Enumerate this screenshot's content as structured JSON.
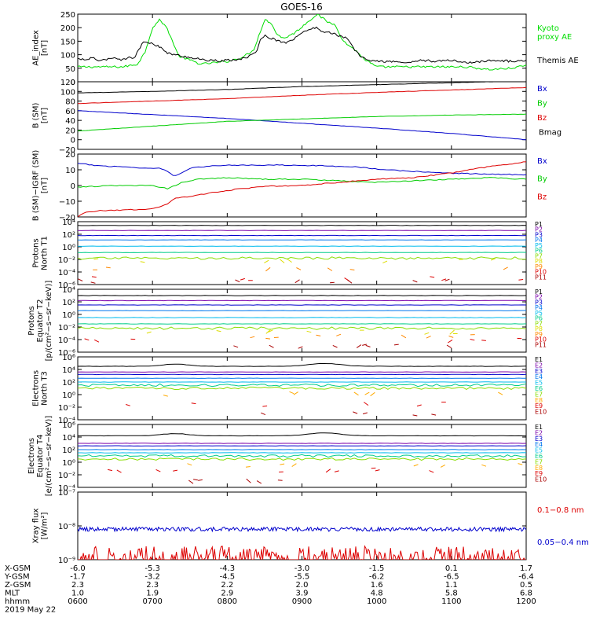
{
  "title": "GOES-16",
  "chart_data": [
    {
      "panel": "ae",
      "type": "line",
      "ylabel_lines": [
        "AE_index",
        "[nT]"
      ],
      "ylim": [
        0,
        250
      ],
      "yticks": [
        "250",
        "200",
        "150",
        "100",
        "50",
        "0"
      ],
      "legend": [
        {
          "lines": [
            "Kyoto",
            "proxy AE"
          ],
          "color": "#00dd00"
        },
        {
          "lines": [
            "Themis AE"
          ],
          "color": "#000000"
        }
      ],
      "series": [
        {
          "name": "Kyoto proxy AE",
          "color": "#00dd00",
          "x": [
            6.0,
            6.3,
            6.6,
            6.8,
            6.9,
            7.0,
            7.1,
            7.2,
            7.35,
            7.5,
            7.65,
            7.8,
            8.0,
            8.2,
            8.35,
            8.5,
            8.6,
            8.65,
            8.75,
            8.9,
            9.05,
            9.2,
            9.35,
            9.45,
            9.55,
            9.7,
            9.85,
            10.0,
            10.2,
            10.5,
            10.8,
            11.0,
            11.2,
            11.5,
            11.8,
            12.0
          ],
          "values": [
            55,
            55,
            55,
            65,
            110,
            200,
            230,
            195,
            95,
            80,
            65,
            70,
            75,
            90,
            115,
            230,
            215,
            180,
            160,
            180,
            215,
            250,
            220,
            210,
            150,
            120,
            80,
            55,
            55,
            55,
            55,
            55,
            55,
            45,
            50,
            60
          ]
        },
        {
          "name": "Themis AE",
          "color": "#000000",
          "x": [
            6.0,
            6.1,
            6.2,
            6.3,
            6.4,
            6.5,
            6.6,
            6.7,
            6.75,
            6.8,
            6.85,
            6.9,
            7.0,
            7.1,
            7.2,
            7.3,
            7.4,
            7.5,
            7.6,
            7.7,
            7.8,
            7.9,
            8.0,
            8.1,
            8.2,
            8.3,
            8.35,
            8.4,
            8.45,
            8.5,
            8.6,
            8.7,
            8.8,
            8.9,
            9.0,
            9.1,
            9.2,
            9.25,
            9.3,
            9.4,
            9.5,
            9.6,
            9.7,
            9.8,
            9.9,
            10.0,
            10.2,
            10.4,
            10.6,
            10.8,
            11.0,
            11.2,
            11.4,
            11.6,
            11.8,
            12.0
          ],
          "values": [
            85,
            80,
            90,
            75,
            85,
            90,
            80,
            95,
            85,
            110,
            135,
            150,
            140,
            130,
            105,
            100,
            95,
            90,
            85,
            80,
            80,
            75,
            80,
            80,
            85,
            95,
            100,
            120,
            160,
            170,
            160,
            150,
            145,
            160,
            180,
            195,
            200,
            190,
            185,
            180,
            170,
            160,
            120,
            90,
            80,
            75,
            75,
            70,
            80,
            75,
            80,
            70,
            75,
            80,
            75,
            80
          ]
        }
      ]
    },
    {
      "panel": "b",
      "type": "line",
      "ylabel_lines": [
        "B (SM)",
        "[nT]"
      ],
      "ylim": [
        -20,
        120
      ],
      "yticks": [
        "120",
        "100",
        "80",
        "60",
        "40",
        "20",
        "0",
        "−20"
      ],
      "legend": [
        {
          "lines": [
            "Bx"
          ],
          "color": "#0000cc"
        },
        {
          "lines": [
            "By"
          ],
          "color": "#00cc00"
        },
        {
          "lines": [
            "Bz"
          ],
          "color": "#dd0000"
        },
        {
          "lines": [
            "Bmag"
          ],
          "color": "#000000"
        }
      ],
      "series": [
        {
          "name": "Bx",
          "color": "#0000cc",
          "x": [
            6.0,
            7.0,
            8.0,
            9.0,
            10.0,
            11.0,
            12.0
          ],
          "values": [
            60,
            52,
            44,
            34,
            24,
            13,
            0
          ]
        },
        {
          "name": "By",
          "color": "#00cc00",
          "x": [
            6.0,
            7.0,
            8.0,
            9.0,
            10.0,
            11.0,
            12.0
          ],
          "values": [
            18,
            28,
            38,
            43,
            48,
            51,
            53
          ]
        },
        {
          "name": "Bz",
          "color": "#dd0000",
          "x": [
            6.0,
            7.0,
            8.0,
            9.0,
            10.0,
            11.0,
            12.0
          ],
          "values": [
            75,
            80,
            85,
            92,
            98,
            103,
            108
          ]
        },
        {
          "name": "Bmag",
          "color": "#000000",
          "x": [
            6.0,
            7.0,
            8.0,
            9.0,
            10.0,
            11.0,
            12.0
          ],
          "values": [
            97,
            100,
            104,
            110,
            114,
            118,
            122
          ]
        }
      ]
    },
    {
      "panel": "bdiff",
      "type": "line",
      "ylabel_lines": [
        "B (SM)−IGRF (SM)",
        "[nT]"
      ],
      "ylim": [
        -20,
        20
      ],
      "yticks": [
        "20",
        "10",
        "0",
        "−10",
        "−20"
      ],
      "legend": [
        {
          "lines": [
            "Bx"
          ],
          "color": "#0000cc"
        },
        {
          "lines": [
            "By"
          ],
          "color": "#00cc00"
        },
        {
          "lines": [
            "Bz"
          ],
          "color": "#dd0000"
        }
      ],
      "series": [
        {
          "name": "Bx",
          "color": "#0000cc",
          "x": [
            6.0,
            6.3,
            6.6,
            6.9,
            7.1,
            7.2,
            7.3,
            7.5,
            7.8,
            8.1,
            8.5,
            8.9,
            9.3,
            9.7,
            10.1,
            10.5,
            10.9,
            11.3,
            11.7,
            12.0
          ],
          "values": [
            14,
            12.5,
            12,
            11,
            11,
            9,
            6,
            11,
            12.5,
            13,
            13,
            13,
            12.5,
            12,
            10,
            9,
            8,
            7.5,
            7,
            7
          ]
        },
        {
          "name": "By",
          "color": "#00cc00",
          "x": [
            6.0,
            6.5,
            7.0,
            7.2,
            7.4,
            7.6,
            8.0,
            8.5,
            9.0,
            9.5,
            10.0,
            10.5,
            11.0,
            11.5,
            12.0
          ],
          "values": [
            -1,
            0,
            0,
            -2,
            2,
            4,
            5,
            4,
            4,
            3,
            2,
            3,
            4,
            5,
            4
          ]
        },
        {
          "name": "Bz",
          "color": "#dd0000",
          "x": [
            6.0,
            6.1,
            6.3,
            6.6,
            7.0,
            7.2,
            7.3,
            7.5,
            7.8,
            8.1,
            8.5,
            9.0,
            9.5,
            10.0,
            10.5,
            11.0,
            11.5,
            12.0
          ],
          "values": [
            -20,
            -17,
            -16,
            -15.5,
            -15,
            -12,
            -8,
            -7,
            -4.5,
            -2.5,
            -0.5,
            0,
            2,
            4,
            5,
            8,
            12,
            15
          ]
        }
      ]
    },
    {
      "panel": "pn",
      "type": "line",
      "log": true,
      "ylabel_lines": [
        "Protons",
        "North T1"
      ],
      "ylim": [
        -6,
        4
      ],
      "yticks": [
        "10⁴",
        "10²",
        "10⁰",
        "10⁻²",
        "10⁻⁴",
        "10⁻⁶"
      ],
      "channels": [
        {
          "label": "P1",
          "color": "#000000",
          "level": 3.4
        },
        {
          "label": "P2",
          "color": "#7b00aa",
          "level": 2.6
        },
        {
          "label": "P3",
          "color": "#0000cc",
          "level": 1.8
        },
        {
          "label": "P4",
          "color": "#0077ee",
          "level": 1.1
        },
        {
          "label": "P5",
          "color": "#00bbee",
          "level": 0.1
        },
        {
          "label": "P6",
          "color": "#00cc88",
          "level": -0.9
        },
        {
          "label": "P7",
          "color": "#88dd00",
          "level": -1.8
        },
        {
          "label": "P8",
          "color": "#dddd00",
          "level": -2.2
        },
        {
          "label": "P9",
          "color": "#ff8800",
          "level": -3.5
        },
        {
          "label": "P10",
          "color": "#dd0000",
          "level": -5.0
        },
        {
          "label": "P11",
          "color": "#aa0000",
          "level": -5.5
        }
      ]
    },
    {
      "panel": "pe",
      "type": "line",
      "log": true,
      "ylabel_lines": [
        "Protons",
        "Equator T2",
        "[p/(cm²−s−sr−keV)]"
      ],
      "ylim": [
        -6,
        4
      ],
      "yticks": [
        "10⁴",
        "10²",
        "10⁰",
        "10⁻²",
        "10⁻⁴",
        "10⁻⁶"
      ],
      "channels": [
        {
          "label": "P1",
          "color": "#000000",
          "level": 3.0
        },
        {
          "label": "P2",
          "color": "#7b00aa",
          "level": 2.2
        },
        {
          "label": "P3",
          "color": "#0000cc",
          "level": 1.5
        },
        {
          "label": "P4",
          "color": "#0077ee",
          "level": 0.6
        },
        {
          "label": "P5",
          "color": "#00bbee",
          "level": -0.5
        },
        {
          "label": "P6",
          "color": "#00cc88",
          "level": -1.5
        },
        {
          "label": "P7",
          "color": "#88dd00",
          "level": -2.2
        },
        {
          "label": "P8",
          "color": "#dddd00",
          "level": -2.8
        },
        {
          "label": "P9",
          "color": "#ff8800",
          "level": -3.5
        },
        {
          "label": "P10",
          "color": "#dd0000",
          "level": -4.2
        },
        {
          "label": "P11",
          "color": "#aa0000",
          "level": -5.0
        }
      ]
    },
    {
      "panel": "en",
      "type": "line",
      "log": true,
      "ylabel_lines": [
        "Electrons",
        "North T3"
      ],
      "ylim": [
        -4,
        6
      ],
      "yticks": [
        "10⁶",
        "10⁴",
        "10²",
        "10⁰",
        "10⁻²",
        "10⁻⁴"
      ],
      "channels": [
        {
          "label": "E1",
          "color": "#000000",
          "level": 4.5
        },
        {
          "label": "E2",
          "color": "#7b00aa",
          "level": 3.6
        },
        {
          "label": "E3",
          "color": "#0000cc",
          "level": 3.2
        },
        {
          "label": "E4",
          "color": "#0077ee",
          "level": 2.6
        },
        {
          "label": "E5",
          "color": "#00bbee",
          "level": 2.0
        },
        {
          "label": "E6",
          "color": "#00cc88",
          "level": 1.5
        },
        {
          "label": "E7",
          "color": "#88dd00",
          "level": 1.0
        },
        {
          "label": "E8",
          "color": "#ffaa00",
          "level": 0.1
        },
        {
          "label": "E9",
          "color": "#dd0000",
          "level": -1.5
        },
        {
          "label": "E10",
          "color": "#aa0000",
          "level": -3.0
        }
      ]
    },
    {
      "panel": "ee",
      "type": "line",
      "log": true,
      "ylabel_lines": [
        "Electrons",
        "Equator T4",
        "[e/(cm²−s−sr−keV)]"
      ],
      "ylim": [
        -4,
        6
      ],
      "yticks": [
        "10⁶",
        "10⁴",
        "10²",
        "10⁰",
        "10⁻²",
        "10⁻⁴"
      ],
      "channels": [
        {
          "label": "E1",
          "color": "#000000",
          "level": 4.2
        },
        {
          "label": "E2",
          "color": "#7b00aa",
          "level": 3.0
        },
        {
          "label": "E3",
          "color": "#0000cc",
          "level": 2.6
        },
        {
          "label": "E4",
          "color": "#0077ee",
          "level": 2.0
        },
        {
          "label": "E5",
          "color": "#00bbee",
          "level": 1.5
        },
        {
          "label": "E6",
          "color": "#00cc88",
          "level": 1.0
        },
        {
          "label": "E7",
          "color": "#88dd00",
          "level": 0.5
        },
        {
          "label": "E8",
          "color": "#ffaa00",
          "level": -0.5
        },
        {
          "label": "E9",
          "color": "#dd0000",
          "level": -1.3
        },
        {
          "label": "E10",
          "color": "#aa0000",
          "level": -3.0
        }
      ]
    },
    {
      "panel": "xray",
      "type": "line",
      "log": true,
      "ylabel_lines": [
        "Xray flux",
        "[W/m²]"
      ],
      "ylim": [
        -9,
        -7
      ],
      "yticks": [
        "10⁻⁷",
        "10⁻⁸",
        "10⁻⁹"
      ],
      "legend": [
        {
          "lines": [
            "0.1−0.8 nm"
          ],
          "color": "#dd0000"
        },
        {
          "lines": [
            "0.05−0.4 nm"
          ],
          "color": "#0000cc"
        }
      ],
      "series": [
        {
          "name": "0.1−0.8 nm",
          "color": "#dd0000",
          "baseline_log": -9.0,
          "peak_log": -8.6
        },
        {
          "name": "0.05−0.4 nm",
          "color": "#0000cc",
          "mean_log": -8.1
        }
      ]
    }
  ],
  "xaxis": {
    "xlim": [
      6,
      12
    ],
    "ticks": [
      6,
      7,
      8,
      9,
      10,
      11,
      12
    ],
    "rows": [
      {
        "label": "X-GSM",
        "values": [
          "-6.0",
          "-5.3",
          "-4.3",
          "-3.0",
          "-1.5",
          "0.1",
          "1.7"
        ]
      },
      {
        "label": "Y-GSM",
        "values": [
          "-1.7",
          "-3.2",
          "-4.5",
          "-5.5",
          "-6.2",
          "-6.5",
          "-6.4"
        ]
      },
      {
        "label": "Z-GSM",
        "values": [
          "2.3",
          "2.3",
          "2.2",
          "2.0",
          "1.6",
          "1.1",
          "0.5"
        ]
      },
      {
        "label": "MLT",
        "values": [
          "1.0",
          "1.9",
          "2.9",
          "3.9",
          "4.8",
          "5.8",
          "6.8"
        ]
      },
      {
        "label": "hhmm",
        "values": [
          "0600",
          "0700",
          "0800",
          "0900",
          "1000",
          "1100",
          "1200"
        ]
      }
    ],
    "date": "2019 May 22"
  }
}
